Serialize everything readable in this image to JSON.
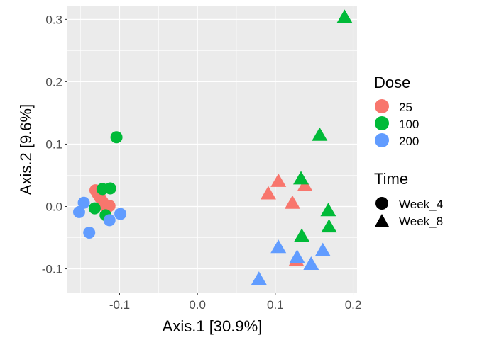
{
  "chart_data": {
    "type": "scatter",
    "title": "",
    "xlabel": "Axis.1   [30.9%]",
    "ylabel": "Axis.2   [9.6%]",
    "xlim": [
      -0.167,
      0.205
    ],
    "ylim": [
      -0.138,
      0.322
    ],
    "x_ticks": [
      -0.1,
      0.0,
      0.1,
      0.2
    ],
    "x_tick_labels": [
      "-0.1",
      "0.0",
      "0.1",
      "0.2"
    ],
    "y_ticks": [
      -0.1,
      0.0,
      0.1,
      0.2,
      0.3
    ],
    "y_tick_labels": [
      "-0.1",
      "0.0",
      "0.1",
      "0.2",
      "0.3"
    ],
    "grid": true,
    "legend_position": "right",
    "colors": {
      "panel_bg": "#ebebeb",
      "grid_major": "#ffffff",
      "25": "#f8766d",
      "100": "#00ba38",
      "200": "#619cff"
    },
    "legends": {
      "dose": {
        "title": "Dose",
        "items": [
          "25",
          "100",
          "200"
        ]
      },
      "time": {
        "title": "Time",
        "items": [
          "Week_4",
          "Week_8"
        ],
        "shapes": [
          "circle",
          "triangle"
        ]
      }
    },
    "series": [
      {
        "dose": "25",
        "time": "Week_4",
        "points": [
          [
            -0.131,
            0.026
          ],
          [
            -0.128,
            0.02
          ],
          [
            -0.125,
            0.014
          ],
          [
            -0.122,
            0.008
          ],
          [
            -0.119,
            0.002
          ],
          [
            -0.117,
            -0.004
          ],
          [
            -0.113,
            0.001
          ]
        ]
      },
      {
        "dose": "100",
        "time": "Week_4",
        "points": [
          [
            -0.104,
            0.111
          ],
          [
            -0.122,
            0.028
          ],
          [
            -0.112,
            0.029
          ],
          [
            -0.132,
            -0.003
          ],
          [
            -0.118,
            -0.014
          ]
        ]
      },
      {
        "dose": "200",
        "time": "Week_4",
        "points": [
          [
            -0.146,
            0.006
          ],
          [
            -0.152,
            -0.009
          ],
          [
            -0.139,
            -0.042
          ],
          [
            -0.113,
            -0.022
          ],
          [
            -0.099,
            -0.012
          ]
        ]
      },
      {
        "dose": "25",
        "time": "Week_8",
        "points": [
          [
            0.091,
            0.02
          ],
          [
            0.104,
            0.04
          ],
          [
            0.122,
            0.005
          ],
          [
            0.138,
            0.033
          ],
          [
            0.127,
            -0.087
          ]
        ]
      },
      {
        "dose": "100",
        "time": "Week_8",
        "points": [
          [
            0.189,
            0.303
          ],
          [
            0.157,
            0.114
          ],
          [
            0.133,
            0.044
          ],
          [
            0.168,
            -0.007
          ],
          [
            0.169,
            -0.033
          ],
          [
            0.134,
            -0.048
          ]
        ]
      },
      {
        "dose": "200",
        "time": "Week_8",
        "points": [
          [
            0.079,
            -0.117
          ],
          [
            0.104,
            -0.066
          ],
          [
            0.128,
            -0.082
          ],
          [
            0.146,
            -0.093
          ],
          [
            0.161,
            -0.071
          ]
        ]
      }
    ]
  }
}
